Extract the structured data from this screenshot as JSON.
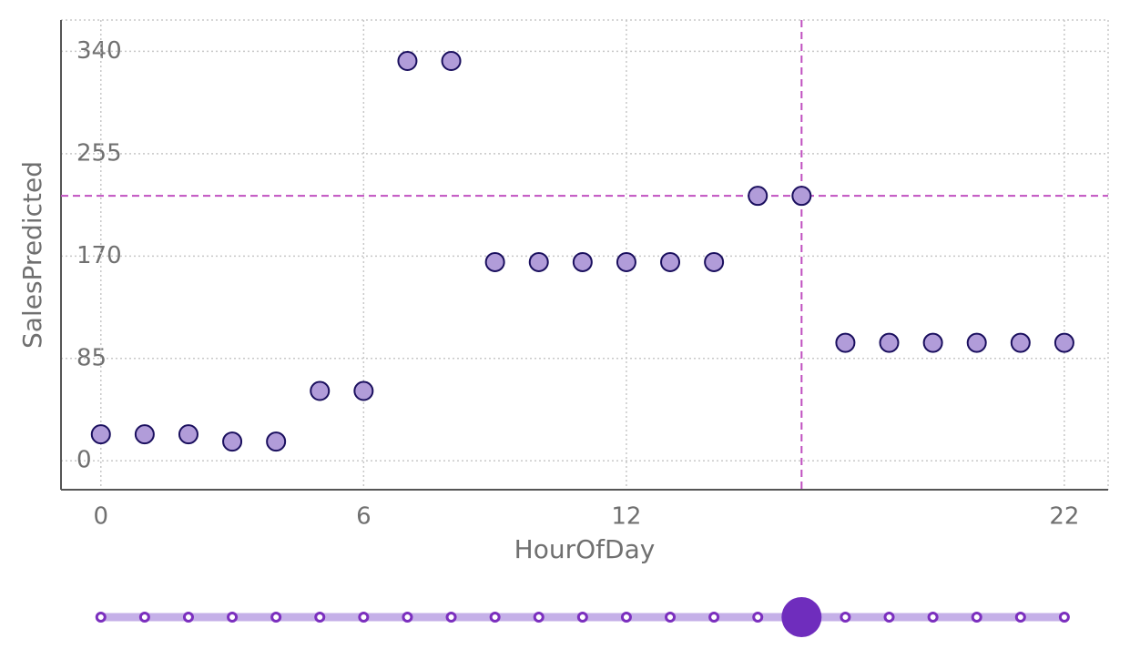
{
  "chart_data": {
    "type": "scatter",
    "x_label": "HourOfDay",
    "y_label": "SalesPredicted",
    "x": [
      0,
      1,
      2,
      3,
      4,
      5,
      6,
      7,
      8,
      9,
      10,
      11,
      12,
      13,
      14,
      15,
      16,
      17,
      18,
      19,
      20,
      21,
      22
    ],
    "series": [
      {
        "color": "#b19cd9",
        "values": [
          22,
          22,
          22,
          16,
          16,
          58,
          58,
          332,
          332,
          165,
          165,
          165,
          165,
          165,
          165,
          220,
          220,
          98,
          98,
          98,
          98,
          98,
          98
        ]
      }
    ],
    "xlim": [
      -0.91,
      23
    ],
    "ylim": [
      -24,
      366
    ],
    "xticks": [
      0,
      6,
      12,
      22
    ],
    "yticks": [
      0,
      85,
      170,
      255,
      340
    ],
    "grid": true,
    "crosshair": {
      "x": 16,
      "y": 220,
      "color": "#c050c0"
    },
    "slider": {
      "selected": 16,
      "color": "#6f2dbd"
    }
  }
}
